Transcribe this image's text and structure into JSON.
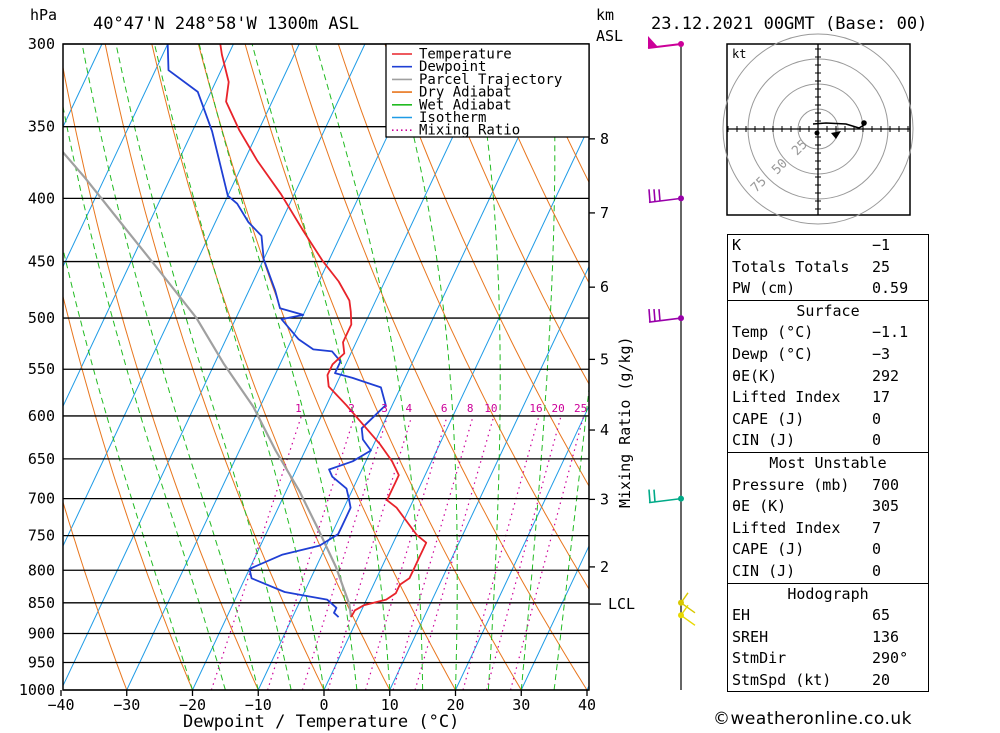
{
  "header": {
    "units_left": "hPa",
    "location": "40°47'N  248°58'W  1300m  ASL",
    "units_km": "km",
    "units_asl": "ASL",
    "datetime": "23.12.2021  00GMT  (Base: 00)"
  },
  "copyright": "©weatheronline.co.uk",
  "chart_data": {
    "type": "line",
    "subtype": "skew-T log-P diagram",
    "title": "40°47'N  248°58'W  1300m  ASL",
    "xlabel": "Dewpoint / Temperature (°C)",
    "ylabel": "hPa",
    "right_axis_label": "Mixing Ratio (g/kg)",
    "xlim": [
      -40,
      40
    ],
    "ylim": [
      1000,
      300
    ],
    "x_ticks": [
      -40,
      -30,
      -20,
      -10,
      0,
      10,
      20,
      30,
      40
    ],
    "x_tick_labels": [
      "−40",
      "−30",
      "−20",
      "−10",
      "0",
      "10",
      "20",
      "30",
      "40"
    ],
    "pressure_levels": [
      300,
      350,
      400,
      450,
      500,
      550,
      600,
      650,
      700,
      750,
      800,
      850,
      900,
      950,
      1000
    ],
    "height_km_ticks": [
      {
        "km": 8,
        "p": 358
      },
      {
        "km": 7,
        "p": 411
      },
      {
        "km": 6,
        "p": 472
      },
      {
        "km": 5,
        "p": 540
      },
      {
        "km": 4,
        "p": 616
      },
      {
        "km": 3,
        "p": 701
      },
      {
        "km": 2,
        "p": 795
      }
    ],
    "lcl": {
      "label": "LCL",
      "p": 852
    },
    "mixing_ratio_labels": [
      "1",
      "2",
      "3",
      "4",
      "6",
      "8",
      "10",
      "16",
      "20",
      "25"
    ],
    "mixing_ratio_label_p": 600,
    "legend": {
      "placement": "top-right",
      "entries": [
        "Temperature",
        "Dewpoint",
        "Parcel Trajectory",
        "Dry Adiabat",
        "Wet Adiabat",
        "Isotherm",
        "Mixing Ratio"
      ]
    },
    "series": [
      {
        "name": "Temperature",
        "color": "#e8232a",
        "points": [
          [
            -1.1,
            873
          ],
          [
            -1,
            862
          ],
          [
            0,
            854
          ],
          [
            3,
            845
          ],
          [
            4,
            835
          ],
          [
            4,
            822
          ],
          [
            5,
            812
          ],
          [
            5,
            797
          ],
          [
            5,
            784
          ],
          [
            5,
            772
          ],
          [
            5,
            760
          ],
          [
            3,
            749
          ],
          [
            -2,
            712
          ],
          [
            -4,
            702
          ],
          [
            -4,
            690
          ],
          [
            -4,
            680
          ],
          [
            -4,
            670
          ],
          [
            -6,
            653
          ],
          [
            -9,
            633
          ],
          [
            -13,
            610
          ],
          [
            -17,
            588
          ],
          [
            -21,
            568
          ],
          [
            -22,
            556
          ],
          [
            -22,
            545
          ],
          [
            -21,
            534
          ],
          [
            -22,
            523
          ],
          [
            -22,
            506
          ],
          [
            -23,
            494
          ],
          [
            -24,
            484
          ],
          [
            -27,
            467
          ],
          [
            -31,
            449
          ],
          [
            -36,
            425
          ],
          [
            -42,
            397
          ],
          [
            -48,
            373
          ],
          [
            -53,
            352
          ],
          [
            -57,
            334
          ],
          [
            -58,
            322
          ],
          [
            -61,
            306
          ],
          [
            -62,
            300
          ]
        ]
      },
      {
        "name": "Dewpoint",
        "color": "#1f3fd4",
        "points": [
          [
            -3,
            873
          ],
          [
            -4,
            866
          ],
          [
            -4,
            858
          ],
          [
            -6,
            845
          ],
          [
            -9,
            840
          ],
          [
            -13,
            833
          ],
          [
            -19,
            812
          ],
          [
            -20,
            798
          ],
          [
            -16,
            777
          ],
          [
            -11,
            764
          ],
          [
            -9,
            748
          ],
          [
            -9,
            737
          ],
          [
            -9,
            724
          ],
          [
            -9,
            712
          ],
          [
            -10,
            699
          ],
          [
            -11,
            687
          ],
          [
            -14,
            672
          ],
          [
            -15,
            663
          ],
          [
            -12,
            653
          ],
          [
            -10,
            640
          ],
          [
            -12,
            627
          ],
          [
            -13,
            614
          ],
          [
            -12,
            601
          ],
          [
            -11,
            588
          ],
          [
            -13,
            569
          ],
          [
            -18,
            559
          ],
          [
            -21,
            554
          ],
          [
            -21,
            542
          ],
          [
            -23,
            532
          ],
          [
            -26,
            530
          ],
          [
            -29,
            520
          ],
          [
            -33,
            501
          ],
          [
            -30,
            497
          ],
          [
            -34,
            491
          ],
          [
            -36,
            475
          ],
          [
            -40,
            448
          ],
          [
            -42,
            429
          ],
          [
            -45,
            418
          ],
          [
            -48,
            404
          ],
          [
            -50,
            398
          ],
          [
            -57,
            353
          ],
          [
            -62,
            328
          ],
          [
            -68,
            315
          ],
          [
            -70,
            300
          ]
        ]
      },
      {
        "name": "Parcel Trajectory",
        "color": "#a0a0a0",
        "points": [
          [
            -1.1,
            873
          ],
          [
            -2.3,
            852
          ],
          [
            -7,
            795
          ],
          [
            -12.5,
            740
          ],
          [
            -18,
            690
          ],
          [
            -24.5,
            640
          ],
          [
            -31,
            590
          ],
          [
            -38.5,
            545
          ],
          [
            -46,
            500
          ],
          [
            -55,
            458
          ],
          [
            -64,
            420
          ],
          [
            -73,
            385
          ],
          [
            -84,
            348
          ],
          [
            -96,
            300
          ]
        ]
      }
    ],
    "dry_adiabat_thetas_c": [
      -30,
      -20,
      -10,
      0,
      10,
      20,
      30,
      40,
      50,
      60,
      70,
      80,
      90,
      100,
      110,
      120,
      130,
      140,
      150,
      160,
      170,
      180
    ],
    "wet_adiabat_thetaw_c": [
      -20,
      -15,
      -10,
      -5,
      0,
      5,
      10,
      15,
      20,
      25,
      30,
      35
    ],
    "isotherms_c": [
      -100,
      -90,
      -80,
      -70,
      -60,
      -50,
      -40,
      -30,
      -20,
      -10,
      0,
      10,
      20,
      30,
      40
    ],
    "mixing_ratios_gkg": [
      1,
      2,
      3,
      4,
      6,
      8,
      10,
      16,
      20,
      25
    ],
    "wind_barbs": [
      {
        "p": 300,
        "kind": "pennant",
        "color": "#cc0099"
      },
      {
        "p": 400,
        "kind": "barbs3",
        "color": "#9900aa"
      },
      {
        "p": 500,
        "kind": "barbs3",
        "color": "#9900aa"
      },
      {
        "p": 700,
        "kind": "barbs2",
        "color": "#00aa88"
      },
      {
        "p": 850,
        "kind": "short",
        "color": "#d8c800"
      },
      {
        "p": 870,
        "kind": "short",
        "color": "#e8d800"
      }
    ],
    "hodograph": {
      "unit_label": "kt",
      "ring_labels": [
        "25",
        "50",
        "75"
      ]
    }
  },
  "indices": {
    "top": [
      {
        "label": "K",
        "value": "−1"
      },
      {
        "label": "Totals Totals",
        "value": "25"
      },
      {
        "label": "PW (cm)",
        "value": "0.59"
      }
    ],
    "surface": {
      "heading": "Surface",
      "rows": [
        {
          "label": "Temp (°C)",
          "value": "−1.1"
        },
        {
          "label": "Dewp (°C)",
          "value": "−3"
        },
        {
          "label": "θE(K)",
          "value": "292"
        },
        {
          "label": "Lifted Index",
          "value": "17"
        },
        {
          "label": "CAPE (J)",
          "value": "0"
        },
        {
          "label": "CIN (J)",
          "value": "0"
        }
      ]
    },
    "most_unstable": {
      "heading": "Most Unstable",
      "rows": [
        {
          "label": "Pressure (mb)",
          "value": "700"
        },
        {
          "label": "θE (K)",
          "value": "305"
        },
        {
          "label": "Lifted Index",
          "value": "7"
        },
        {
          "label": "CAPE (J)",
          "value": "0"
        },
        {
          "label": "CIN (J)",
          "value": "0"
        }
      ]
    },
    "hodograph": {
      "heading": "Hodograph",
      "rows": [
        {
          "label": "EH",
          "value": "65"
        },
        {
          "label": "SREH",
          "value": "136"
        },
        {
          "label": "StmDir",
          "value": "290°"
        },
        {
          "label": "StmSpd (kt)",
          "value": "20"
        }
      ]
    }
  }
}
